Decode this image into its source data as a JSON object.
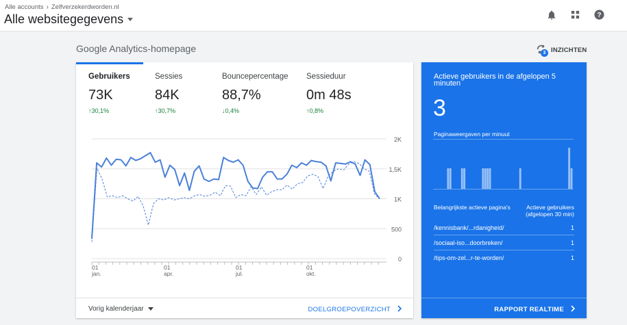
{
  "header": {
    "breadcrumb_all": "Alle accounts",
    "breadcrumb_account": "Zelfverzekerdworden.nl",
    "view_title": "Alle websitegegevens"
  },
  "home": {
    "title": "Google Analytics-homepage",
    "insights_label": "INZICHTEN",
    "insights_count": "3"
  },
  "metrics": [
    {
      "label": "Gebruikers",
      "value": "73K",
      "change": "30,1%",
      "direction": "up"
    },
    {
      "label": "Sessies",
      "value": "84K",
      "change": "30,7%",
      "direction": "up"
    },
    {
      "label": "Bouncepercentage",
      "value": "88,7%",
      "change": "0,4%",
      "direction": "down"
    },
    {
      "label": "Sessieduur",
      "value": "0m 48s",
      "change": "0,8%",
      "direction": "up"
    }
  ],
  "chart_data": {
    "type": "line",
    "y_ticks": [
      "2K",
      "1,5K",
      "1K",
      "500",
      "0"
    ],
    "ylim": [
      0,
      2000
    ],
    "x_ticks": [
      {
        "day": "01",
        "month": "jan."
      },
      {
        "day": "01",
        "month": "apr."
      },
      {
        "day": "01",
        "month": "jul."
      },
      {
        "day": "01",
        "month": "okt."
      }
    ],
    "series": [
      {
        "style": "solid",
        "values": [
          330,
          1600,
          1530,
          1680,
          1560,
          1660,
          1650,
          1550,
          1690,
          1640,
          1670,
          1720,
          1770,
          1610,
          1650,
          1360,
          1560,
          1490,
          1220,
          1430,
          1140,
          1460,
          1550,
          1330,
          1290,
          1330,
          1320,
          1690,
          1640,
          1610,
          1650,
          1560,
          1290,
          1180,
          1170,
          1360,
          1450,
          1450,
          1330,
          1330,
          1410,
          1560,
          1520,
          1600,
          1560,
          1640,
          1620,
          1610,
          1550,
          1300,
          1600,
          1590,
          1580,
          1620,
          1580,
          1390,
          1650,
          1570,
          1120,
          1000
        ]
      },
      {
        "style": "dashed",
        "values": [
          280,
          1510,
          1330,
          1030,
          1050,
          1020,
          1050,
          1000,
          960,
          1040,
          880,
          560,
          920,
          1000,
          980,
          1020,
          980,
          1000,
          1020,
          1000,
          1050,
          1070,
          1040,
          1060,
          1110,
          1050,
          1220,
          1210,
          1020,
          1070,
          1050,
          1200,
          1070,
          1200,
          1060,
          1120,
          1150,
          1150,
          1230,
          1160,
          1250,
          1270,
          1380,
          1410,
          1370,
          1170,
          1380,
          1460,
          1500,
          1480,
          1580,
          1620,
          1590,
          1500,
          1460,
          1080,
          1000
        ]
      }
    ]
  },
  "footer": {
    "date_range": "Vorig kalenderjaar",
    "audience_link": "DOELGROEPOVERZICHT"
  },
  "realtime": {
    "title": "Actieve gebruikers in de afgelopen 5 minuten",
    "count": "3",
    "subtitle": "Paginaweergaven per minuut",
    "bars": [
      0,
      0,
      0,
      0,
      0,
      0,
      1,
      1,
      0,
      0,
      0,
      0,
      1,
      1,
      0,
      0,
      0,
      0,
      0,
      0,
      0,
      1,
      1,
      1,
      1,
      0,
      0,
      0,
      0,
      0,
      0,
      0,
      0,
      0,
      0,
      0,
      0,
      1,
      0,
      0,
      0,
      0,
      0,
      0,
      0,
      0,
      0,
      0,
      0,
      0,
      0,
      0,
      0,
      0,
      0,
      0,
      0,
      0,
      2,
      1
    ],
    "col_page": "Belangrijkste actieve pagina's",
    "col_users_line1": "Actieve gebruikers",
    "col_users_line2": "(afgelopen 30 min)",
    "rows": [
      {
        "page": "/kennisbank/...rdanigheid/",
        "count": "1"
      },
      {
        "page": "/sociaal-iso...doorbreken/",
        "count": "1"
      },
      {
        "page": "/tips-om-zel...r-te-worden/",
        "count": "1"
      }
    ],
    "report_link": "RAPPORT REALTIME"
  }
}
